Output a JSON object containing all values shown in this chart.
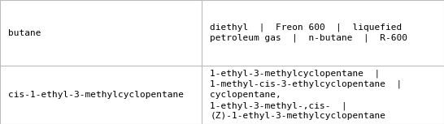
{
  "rows": [
    {
      "left": "butane",
      "right": "diethyl  |  Freon 600  |  liquefied\npetroleum gas  |  n-butane  |  R-600"
    },
    {
      "left": "cis-1-ethyl-3-methylcyclopentane",
      "right": "1-ethyl-3-methylcyclopentane  |\n1-methyl-cis-3-ethylcyclopentane  |\ncyclopentane,\n1-ethyl-3-methyl-,cis-  |\n(Z)-1-ethyl-3-methylcyclopentane"
    }
  ],
  "col_split": 0.455,
  "row_split": 0.47,
  "background_color": "#ffffff",
  "border_color": "#bbbbbb",
  "text_color": "#000000",
  "font_size": 8.0,
  "figwidth": 5.46,
  "figheight": 1.53,
  "dpi": 100
}
